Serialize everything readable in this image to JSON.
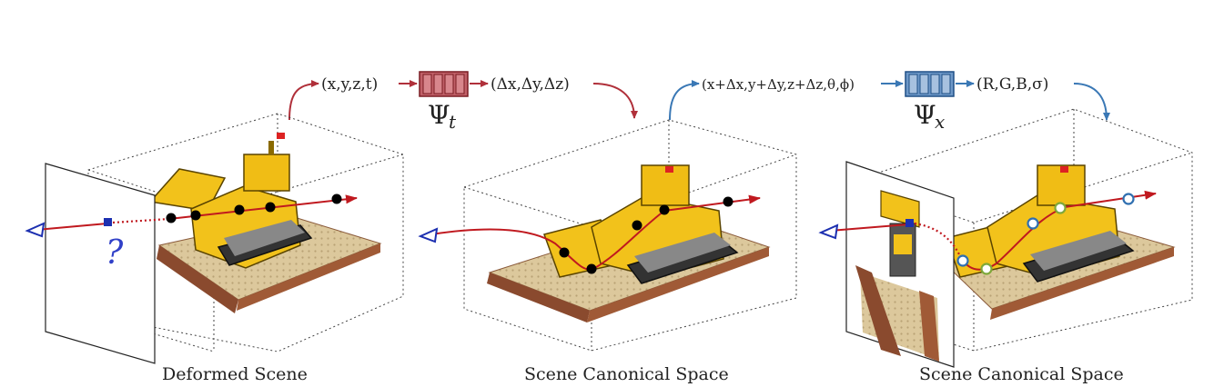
{
  "formulas": {
    "input_t": "(x,y,z,t)",
    "output_t": "(Δx,Δy,Δz)",
    "input_x": "(x+Δx,y+Δy,z+Δz,θ,ϕ)",
    "output_x": "(R,G,B,σ)"
  },
  "networks": {
    "psi_symbol": "Ψ",
    "psi_t_sub": "t",
    "psi_x_sub": "x",
    "psi_t_color": "#b0303a",
    "psi_x_color": "#3a78b5"
  },
  "captions": {
    "left": "Deformed Scene",
    "middle": "Scene Canonical Space",
    "right": "Scene Canonical Space"
  },
  "question_mark": "?",
  "colors": {
    "ray_red": "#c0191f",
    "camera_blue": "#1c2fb0",
    "arrow_red": "#b0303a",
    "arrow_blue": "#3a78b5",
    "point_black": "#000000",
    "point_hollow_blue": "#2f6fb0",
    "point_hollow_green": "#7ea83a",
    "lego_yellow": "#f2c21b",
    "floor_tan": "#d8c49a"
  }
}
